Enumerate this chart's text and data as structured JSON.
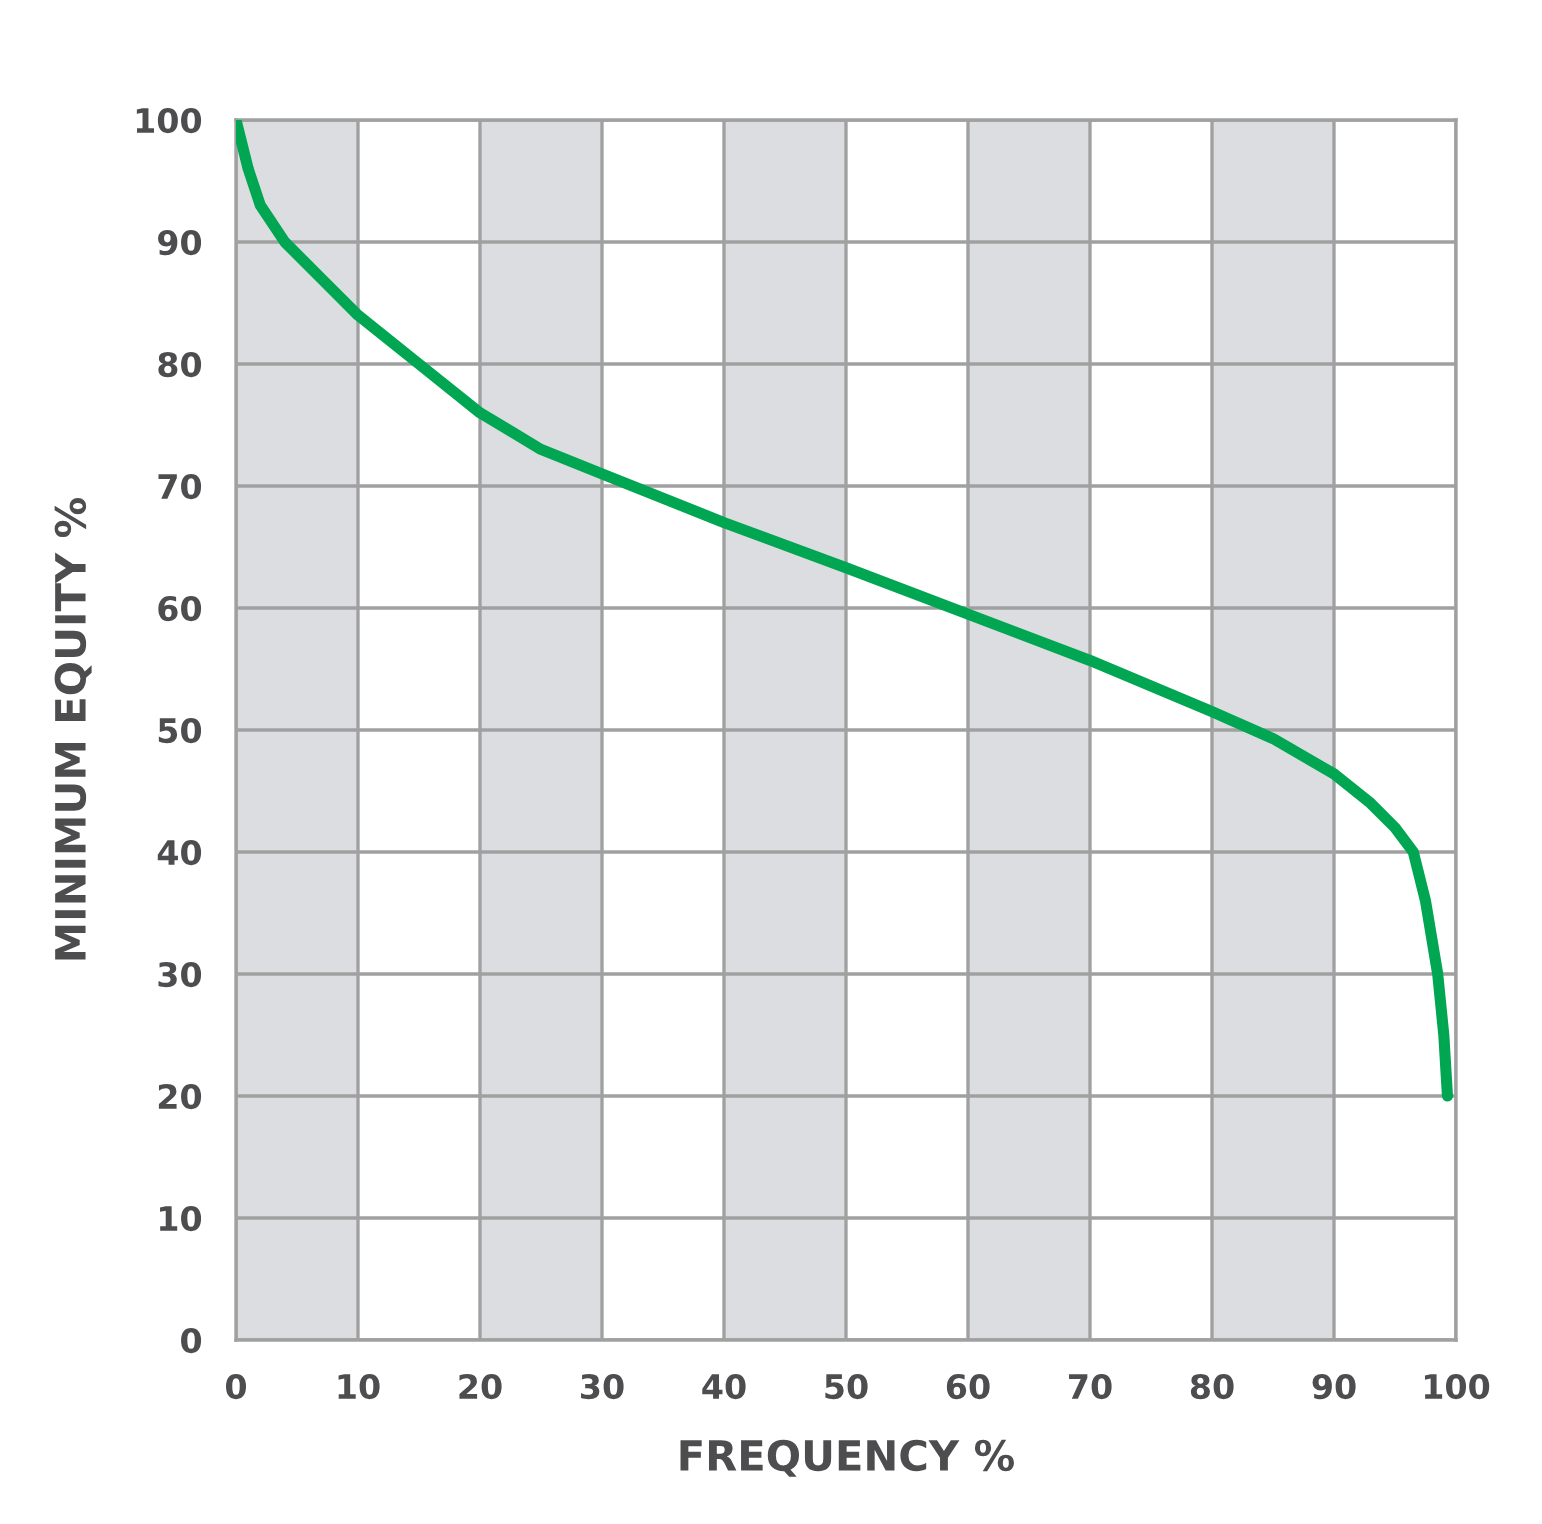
{
  "chart_data": {
    "type": "line",
    "xlabel": "FREQUENCY %",
    "ylabel": "MINIMUM EQUITY %",
    "x": [
      0,
      1,
      2,
      4,
      7,
      10,
      15,
      20,
      25,
      30,
      40,
      50,
      60,
      70,
      80,
      85,
      90,
      93,
      95,
      96.5,
      97.5,
      98.5,
      99,
      99.3
    ],
    "series": [
      {
        "color": "#00a651",
        "values": [
          100,
          96,
          93,
          90,
          87,
          84,
          80,
          76,
          73,
          71,
          67,
          63.3,
          59.5,
          55.7,
          51.5,
          49.3,
          46.4,
          44,
          42,
          40,
          36,
          30,
          25,
          20
        ]
      }
    ],
    "xlim": [
      0,
      100
    ],
    "ylim": [
      0,
      100
    ],
    "xticks": [
      0,
      10,
      20,
      30,
      40,
      50,
      60,
      70,
      80,
      90,
      100
    ],
    "yticks": [
      0,
      10,
      20,
      30,
      40,
      50,
      60,
      70,
      80,
      90,
      100
    ],
    "grid": true,
    "marker": "none",
    "line_style": "solid",
    "bands": [
      {
        "axis": "x",
        "from": 0,
        "to": 10,
        "color": "#dcdde0"
      },
      {
        "axis": "x",
        "from": 20,
        "to": 30,
        "color": "#dcdde0"
      },
      {
        "axis": "x",
        "from": 40,
        "to": 50,
        "color": "#dcdde0"
      },
      {
        "axis": "x",
        "from": 60,
        "to": 70,
        "color": "#dcdde0"
      },
      {
        "axis": "x",
        "from": 80,
        "to": 90,
        "color": "#dcdde0"
      }
    ]
  }
}
